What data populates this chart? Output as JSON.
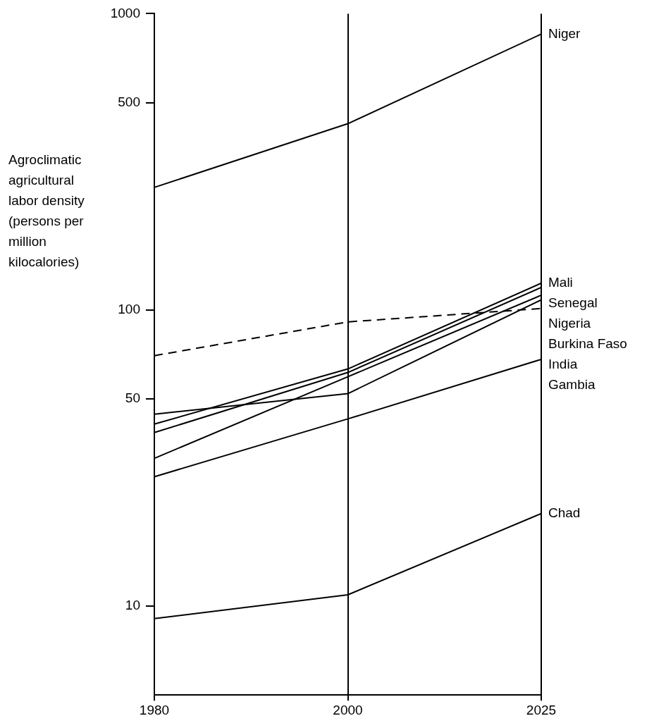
{
  "chart_data": {
    "type": "line",
    "ylabel": "Agroclimatic agricultural labor density (persons per million kilocalories)",
    "categories": [
      "1980",
      "2000",
      "2025"
    ],
    "series": [
      {
        "name": "Niger",
        "color": "#000000",
        "values": [
          259,
          425,
          853
        ]
      },
      {
        "name": "Mali",
        "color": "#000000",
        "values": [
          41.1,
          63.1,
          123
        ]
      },
      {
        "name": "Senegal",
        "color": "#000000",
        "values": [
          38.5,
          61.4,
          119
        ]
      },
      {
        "name": "Nigeria",
        "color": "#000000",
        "values": [
          31.5,
          59.4,
          112
        ]
      },
      {
        "name": "Burkina Faso",
        "color": "#000000",
        "values": [
          44.4,
          52.1,
          108
        ]
      },
      {
        "name": "India",
        "color": "#000000",
        "values": [
          70,
          91,
          101
        ],
        "line_style": "dashed"
      },
      {
        "name": "Gambia",
        "color": "#000000",
        "values": [
          27.3,
          42.8,
          68
        ]
      },
      {
        "name": "Chad",
        "color": "#000000",
        "values": [
          9.06,
          10.9,
          20.5
        ]
      }
    ],
    "ylim": [
      5,
      1000
    ],
    "yticks": [
      10,
      50,
      100,
      500,
      1000
    ],
    "log": true,
    "grid": "x",
    "legend": false,
    "marker": "none",
    "line_style": "solid"
  }
}
